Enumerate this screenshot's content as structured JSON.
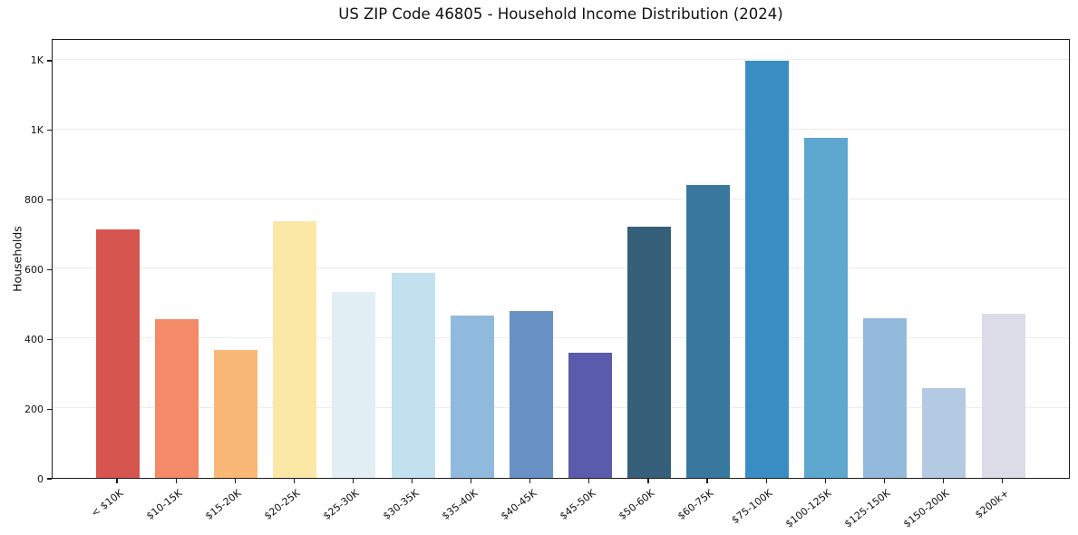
{
  "chart_data": {
    "type": "bar",
    "title": "US ZIP Code 46805 - Household Income Distribution (2024)",
    "xlabel": "",
    "ylabel": "Households",
    "categories": [
      "< $10K",
      "$10-15K",
      "$15-20K",
      "$20-25K",
      "$25-30K",
      "$30-35K",
      "$35-40K",
      "$40-45K",
      "$45-50K",
      "$50-60K",
      "$60-75K",
      "$75-100K",
      "$100-125K",
      "$125-150K",
      "$150-200K",
      "$200k+"
    ],
    "values": [
      712,
      455,
      366,
      737,
      534,
      588,
      467,
      480,
      358,
      720,
      841,
      1196,
      977,
      459,
      257,
      471
    ],
    "bar_colors": [
      "#d6564f",
      "#f38a68",
      "#fab877",
      "#fbe7a6",
      "#e1eff5",
      "#c0e1ed",
      "#90badd",
      "#6991c6",
      "#5a5cab",
      "#36607a",
      "#38789f",
      "#398dc3",
      "#5ea7cf",
      "#93badd",
      "#b4c9e2",
      "#dadce8"
    ],
    "ylim": [
      0,
      1262
    ],
    "yticks": {
      "values": [
        0,
        200,
        400,
        600,
        800,
        1000,
        1200
      ],
      "labels": [
        "0",
        "200",
        "400",
        "600",
        "800",
        "1K",
        "1K"
      ]
    },
    "grid": true,
    "legend": "none",
    "background_color": "#ffffff",
    "spine_color": "#1c1c1c",
    "grid_color": "#ebebeb",
    "text_color": "#111111"
  }
}
